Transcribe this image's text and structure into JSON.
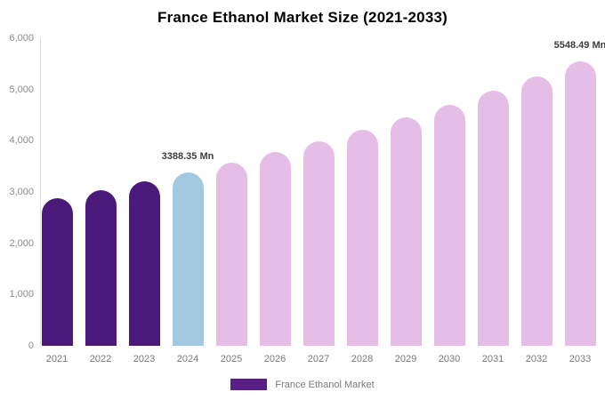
{
  "title": "France Ethanol Market Size (2021-2033)",
  "legend": {
    "label": "France Ethanol Market",
    "swatch_color": "#5a1e87"
  },
  "colors": {
    "historical": "#4b1979",
    "current": "#a2c9df",
    "forecast": "#e5bde7",
    "axis_line": "#dcdcdc",
    "tick_text": "#8b8b8b",
    "data_label_text": "#3d3d3d"
  },
  "chart_data": {
    "type": "bar",
    "title": "France Ethanol Market Size (2021-2033)",
    "unit": "Mn",
    "xlabel": "",
    "ylabel": "",
    "ylim": [
      0,
      6000
    ],
    "grid": false,
    "legend_position": "bottom",
    "categories": [
      "2021",
      "2022",
      "2023",
      "2024",
      "2025",
      "2026",
      "2027",
      "2028",
      "2029",
      "2030",
      "2031",
      "2032",
      "2033"
    ],
    "series": [
      {
        "name": "France Ethanol Market",
        "values": [
          2875,
          3037,
          3208,
          3388.35,
          3579,
          3781,
          3994,
          4219,
          4456,
          4707,
          4973,
          5253,
          5548.49
        ]
      }
    ],
    "bar_color_keys": [
      "historical",
      "historical",
      "historical",
      "current",
      "forecast",
      "forecast",
      "forecast",
      "forecast",
      "forecast",
      "forecast",
      "forecast",
      "forecast",
      "forecast"
    ],
    "data_labels": [
      {
        "index": 3,
        "text": "3388.35 Mn"
      },
      {
        "index": 12,
        "text": "5548.49 Mn"
      }
    ],
    "yticks": [
      {
        "value": 0,
        "label": "0"
      },
      {
        "value": 1000,
        "label": "1,000"
      },
      {
        "value": 2000,
        "label": "2,000"
      },
      {
        "value": 3000,
        "label": "3,000"
      },
      {
        "value": 4000,
        "label": "4,000"
      },
      {
        "value": 5000,
        "label": "5,000"
      },
      {
        "value": 6000,
        "label": "6,000"
      }
    ]
  }
}
